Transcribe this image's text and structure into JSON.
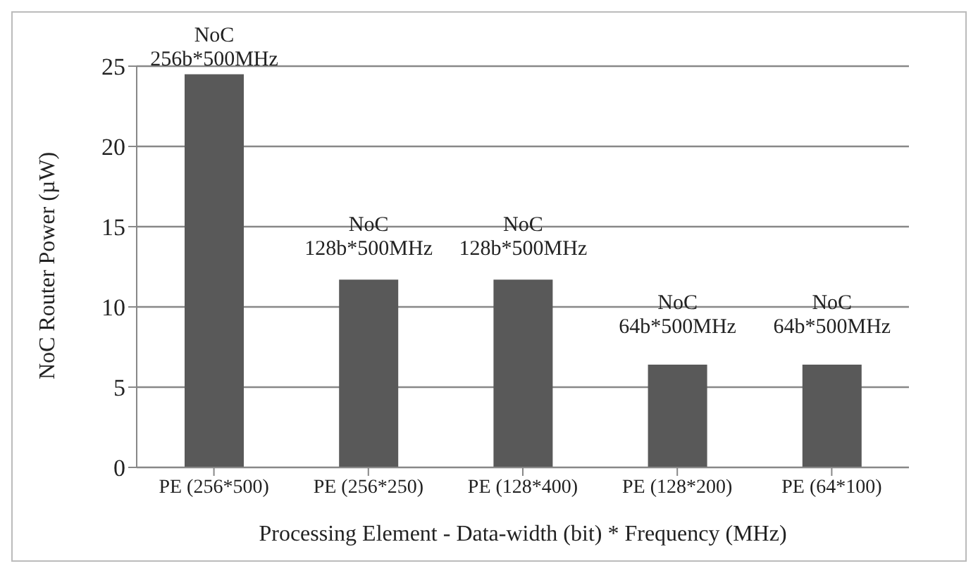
{
  "chart_data": {
    "type": "bar",
    "xlabel": "Processing Element - Data-width (bit) * Frequency (MHz)",
    "ylabel": "NoC Router Power (µW)",
    "categories": [
      "PE (256*500)",
      "PE (256*250)",
      "PE (128*400)",
      "PE (128*200)",
      "PE (64*100)"
    ],
    "values": [
      24.5,
      11.7,
      11.7,
      6.4,
      6.4
    ],
    "color": "#595959",
    "ylim": [
      0,
      25
    ],
    "yticks": [
      0,
      5,
      10,
      15,
      20,
      25
    ],
    "grid": "y",
    "legend": false,
    "annotations": [
      {
        "text": "NoC\n256b*500MHz",
        "x": "PE (256*500)",
        "y": 24.5
      },
      {
        "text": "NoC\n128b*500MHz",
        "x": "PE (256*250)",
        "y": 11.7
      },
      {
        "text": "NoC\n128b*500MHz",
        "x": "PE (128*400)",
        "y": 11.7
      },
      {
        "text": "NoC\n64b*500MHz",
        "x": "PE (128*200)",
        "y": 6.4
      },
      {
        "text": "NoC\n64b*500MHz",
        "x": "PE (64*100)",
        "y": 6.4
      }
    ]
  }
}
